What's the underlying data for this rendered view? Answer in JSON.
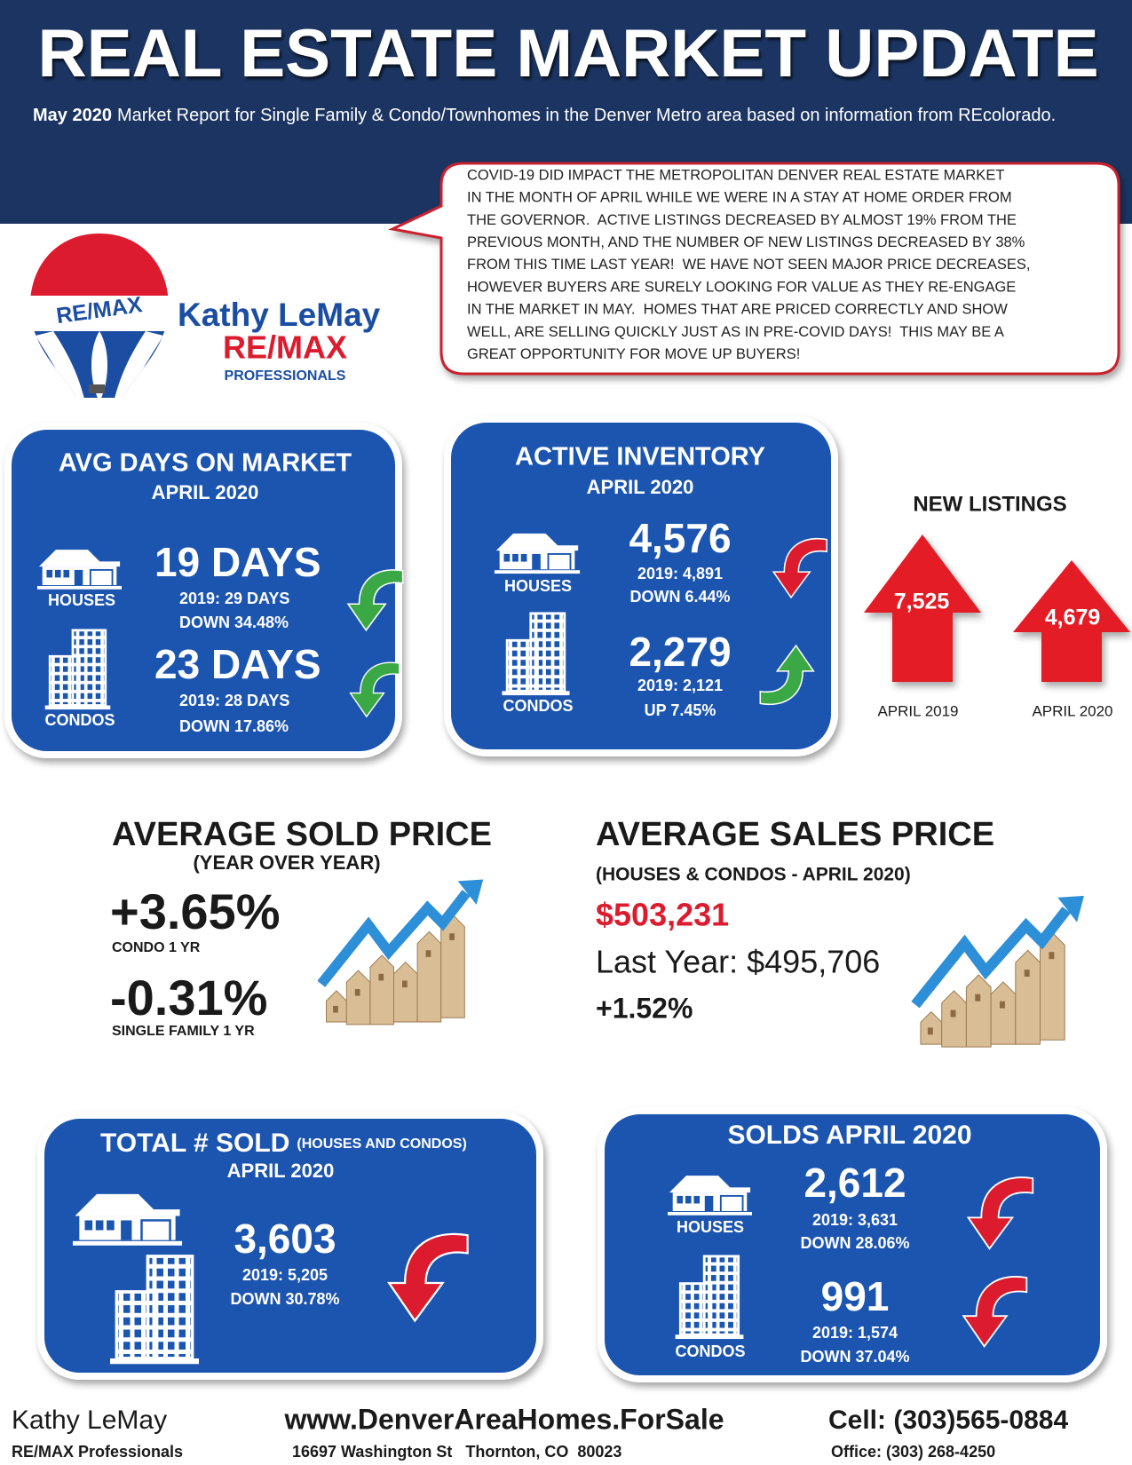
{
  "header": {
    "title": "REAL ESTATE MARKET UPDATE",
    "subtitle_bold": "May 2020",
    "subtitle": "Market Report for Single Family & Condo/Townhomes in the Denver Metro area based on information from REcolorado."
  },
  "notice": {
    "lines": [
      "COVID-19 DID IMPACT THE METROPOLITAN DENVER REAL ESTATE MARKET",
      "IN THE MONTH OF APRIL WHILE WE WERE IN A STAY AT HOME ORDER FROM",
      "THE GOVERNOR.  ACTIVE LISTINGS DECREASED BY ALMOST 19% FROM THE",
      "PREVIOUS MONTH, AND THE NUMBER OF NEW LISTINGS DECREASED BY 38%",
      "FROM THIS TIME LAST YEAR!  WE HAVE NOT SEEN MAJOR PRICE DECREASES,",
      "HOWEVER BUYERS ARE SURELY LOOKING FOR VALUE AS THEY RE-ENGAGE",
      "IN THE MARKET IN MAY.  HOMES THAT ARE PRICED CORRECTLY AND SHOW",
      "WELL, ARE SELLING QUICKLY JUST AS IN PRE-COVID DAYS!  THIS MAY BE A",
      "GREAT OPPORTUNITY FOR MOVE UP BUYERS!"
    ]
  },
  "agent": {
    "name": "Kathy LeMay",
    "brand": "RE/MAX",
    "office": "PROFESSIONALS"
  },
  "days_on_market": {
    "title": "AVG DAYS ON MARKET",
    "period": "APRIL 2020",
    "houses": {
      "label": "HOUSES",
      "value": "19 DAYS",
      "prior": "2019: 29 DAYS",
      "change": "DOWN 34.48%"
    },
    "condos": {
      "label": "CONDOS",
      "value": "23 DAYS",
      "prior": "2019: 28 DAYS",
      "change": "DOWN 17.86%"
    }
  },
  "active_inventory": {
    "title": "ACTIVE INVENTORY",
    "period": "APRIL 2020",
    "houses": {
      "label": "HOUSES",
      "value": "4,576",
      "prior": "2019: 4,891",
      "change": "DOWN 6.44%"
    },
    "condos": {
      "label": "CONDOS",
      "value": "2,279",
      "prior": "2019: 2,121",
      "change": "UP 7.45%"
    }
  },
  "new_listings": {
    "title": "NEW LISTINGS",
    "items": [
      {
        "value": "7,525",
        "label": "APRIL 2019"
      },
      {
        "value": "4,679",
        "label": "APRIL 2020"
      }
    ]
  },
  "avg_sold_price": {
    "title": "AVERAGE SOLD PRICE",
    "subtitle": "(YEAR OVER YEAR)",
    "condo": {
      "value": "+3.65%",
      "label": "CONDO 1 YR"
    },
    "single_family": {
      "value": "-0.31%",
      "label": "SINGLE FAMILY 1 YR"
    }
  },
  "avg_sales_price": {
    "title": "AVERAGE SALES PRICE",
    "subtitle": "(HOUSES & CONDOS - APRIL 2020)",
    "value": "$503,231",
    "last_year": "Last Year: $495,706",
    "change": "+1.52%"
  },
  "total_sold": {
    "title": "TOTAL # SOLD",
    "title_note": "(HOUSES AND CONDOS)",
    "period": "APRIL 2020",
    "value": "3,603",
    "prior": "2019: 5,205",
    "change": "DOWN 30.78%"
  },
  "solds": {
    "title": "SOLDS APRIL 2020",
    "houses": {
      "label": "HOUSES",
      "value": "2,612",
      "prior": "2019: 3,631",
      "change": "DOWN 28.06%"
    },
    "condos": {
      "label": "CONDOS",
      "value": "991",
      "prior": "2019: 1,574",
      "change": "DOWN 37.04%"
    }
  },
  "footer": {
    "name": "Kathy LeMay",
    "office": "RE/MAX Professionals",
    "website": "www.DenverAreaHomes.ForSale",
    "address": "16697 Washington St   Thornton, CO  80023",
    "cell": "Cell: (303)565-0884",
    "phone": "Office: (303) 268-4250"
  }
}
